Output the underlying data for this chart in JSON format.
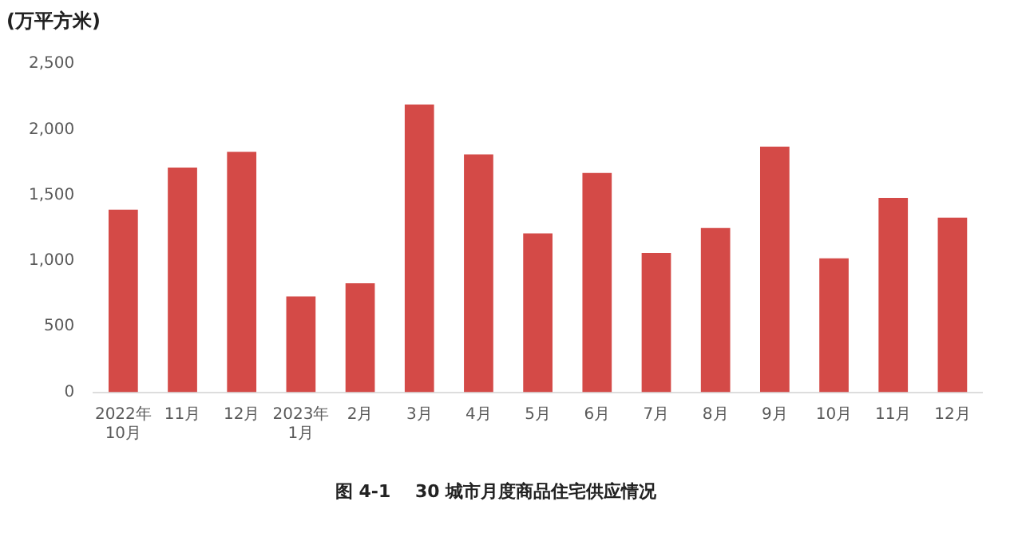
{
  "chart_data": {
    "type": "bar",
    "title": "图 4-1    30 城市月度商品住宅供应情况",
    "ylabel": "(万平方米)",
    "categories": [
      "2022年\n10月",
      "11月",
      "12月",
      "2023年\n1月",
      "2月",
      "3月",
      "4月",
      "5月",
      "6月",
      "7月",
      "8月",
      "9月",
      "10月",
      "11月",
      "12月"
    ],
    "values": [
      1390,
      1710,
      1830,
      730,
      830,
      2190,
      1810,
      1210,
      1670,
      1060,
      1250,
      1870,
      1020,
      1480,
      1330
    ],
    "color": "#d44a47",
    "ylim": [
      0,
      2500
    ],
    "yticks": [
      0,
      500,
      {
        "value": 1000,
        "label": "1,000"
      },
      {
        "value": 1500,
        "label": "1,500"
      },
      {
        "value": 2000,
        "label": "2,000"
      },
      {
        "value": 2500,
        "label": "2,500"
      }
    ],
    "grid": false,
    "legend": false
  }
}
